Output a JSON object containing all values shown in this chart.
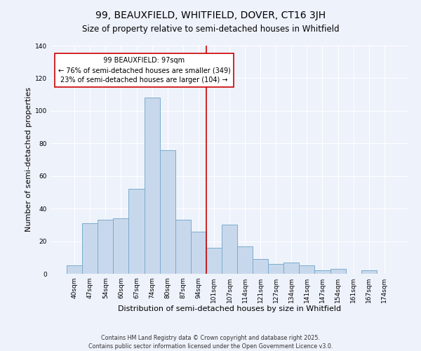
{
  "title": "99, BEAUXFIELD, WHITFIELD, DOVER, CT16 3JH",
  "subtitle": "Size of property relative to semi-detached houses in Whitfield",
  "xlabel": "Distribution of semi-detached houses by size in Whitfield",
  "ylabel": "Number of semi-detached properties",
  "bar_labels": [
    "40sqm",
    "47sqm",
    "54sqm",
    "60sqm",
    "67sqm",
    "74sqm",
    "80sqm",
    "87sqm",
    "94sqm",
    "101sqm",
    "107sqm",
    "114sqm",
    "121sqm",
    "127sqm",
    "134sqm",
    "141sqm",
    "147sqm",
    "154sqm",
    "161sqm",
    "167sqm",
    "174sqm"
  ],
  "bar_values": [
    5,
    31,
    33,
    34,
    52,
    108,
    76,
    33,
    26,
    16,
    30,
    17,
    9,
    6,
    7,
    5,
    2,
    3,
    0,
    2,
    0
  ],
  "bar_color": "#c8d8ec",
  "bar_edge_color": "#7aaccc",
  "vline_color": "#cc0000",
  "annotation_title": "99 BEAUXFIELD: 97sqm",
  "annotation_line1": "← 76% of semi-detached houses are smaller (349)",
  "annotation_line2": "23% of semi-detached houses are larger (104) →",
  "annotation_box_color": "#ffffff",
  "annotation_box_edge": "#cc0000",
  "ylim": [
    0,
    140
  ],
  "yticks": [
    0,
    20,
    40,
    60,
    80,
    100,
    120,
    140
  ],
  "footer_line1": "Contains HM Land Registry data © Crown copyright and database right 2025.",
  "footer_line2": "Contains public sector information licensed under the Open Government Licence v3.0.",
  "background_color": "#eef2fb",
  "grid_color": "#ffffff",
  "title_fontsize": 10,
  "subtitle_fontsize": 8.5,
  "axis_label_fontsize": 8,
  "tick_fontsize": 6.5,
  "annotation_fontsize": 7,
  "footer_fontsize": 5.8
}
